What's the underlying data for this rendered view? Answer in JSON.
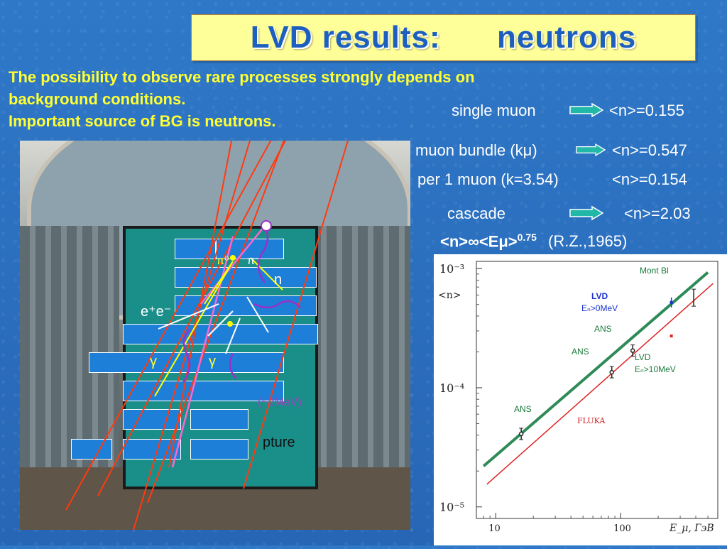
{
  "slide": {
    "title": "LVD results:      neutrons",
    "intro_line1": "The possibility to observe rare processes strongly depends on",
    "intro_line2": "background conditions.",
    "intro_line3": "Important  source of BG is neutrons."
  },
  "results": [
    {
      "label": "single muon",
      "value": "<n>=0.155"
    },
    {
      "label": "muon bundle (kμ)",
      "value": "<n>=0.547"
    },
    {
      "label": "per 1 muon (k=3.54)",
      "value": "<n>=0.154"
    },
    {
      "label": "cascade",
      "value": "<n>=2.03"
    }
  ],
  "formula": {
    "main": "<n>∞<Eμ>",
    "exponent": "0.75",
    "ref": "(R.Z.,1965)"
  },
  "event_labels": {
    "ee": "e⁺e⁻",
    "n": "n",
    "gamma": "γ",
    "pi0": "π⁰",
    "pim": "π⁻",
    "energy": "(~2MeV)",
    "capture": "pture"
  },
  "colors": {
    "title_text": "#1c5fbe",
    "intro_text": "#ffff33",
    "arrow": "#22b8a8",
    "green_line": "#2e8b57",
    "red_line": "#dd2222",
    "lvd_blue": "#1a33cc"
  },
  "chart_data": {
    "type": "scatter",
    "xscale": "log",
    "yscale": "log",
    "xlim": [
      7,
      600
    ],
    "ylim": [
      8e-06,
      0.00115
    ],
    "xticks": [
      10,
      100
    ],
    "ytick_labels": [
      "10⁻³",
      "10⁻⁴",
      "10⁻⁵"
    ],
    "ylabel": "<n>",
    "xlabel": "E_μ, ГэВ",
    "series": [
      {
        "name": "Mont Bl",
        "points": [
          {
            "x": 385,
            "y": 0.00057
          }
        ]
      },
      {
        "name": "ANS",
        "points": [
          {
            "x": 16,
            "y": 4.1e-05
          },
          {
            "x": 85,
            "y": 0.000135
          },
          {
            "x": 125,
            "y": 0.000205
          }
        ]
      },
      {
        "name": "LVD En>0MeV",
        "points": [
          {
            "x": 255,
            "y": 0.00052
          }
        ]
      },
      {
        "name": "LVD En>10MeV",
        "points": [
          {
            "x": 255,
            "y": 0.000272
          }
        ]
      }
    ],
    "lines": [
      {
        "name": "",
        "kind": "fit",
        "from": [
          8,
          2.2e-05
        ],
        "to": [
          500,
          0.00093
        ]
      },
      {
        "name": "FLUKA",
        "kind": "calc",
        "from": [
          8.5,
          1.55e-05
        ],
        "to": [
          550,
          0.00075
        ]
      }
    ],
    "annotations": {
      "montbl": "Mont Bl",
      "lvd": "LVD",
      "en0": "Eₙ>0MeV",
      "ans1": "ANS",
      "ans2": "ANS",
      "ans3": "ANS",
      "lvd2": "LVD",
      "en10": "Eₙ>10MeV",
      "fluka": "FLUKA",
      "ylabel": "<n>",
      "xlabel": "E_μ, ГэВ"
    }
  }
}
